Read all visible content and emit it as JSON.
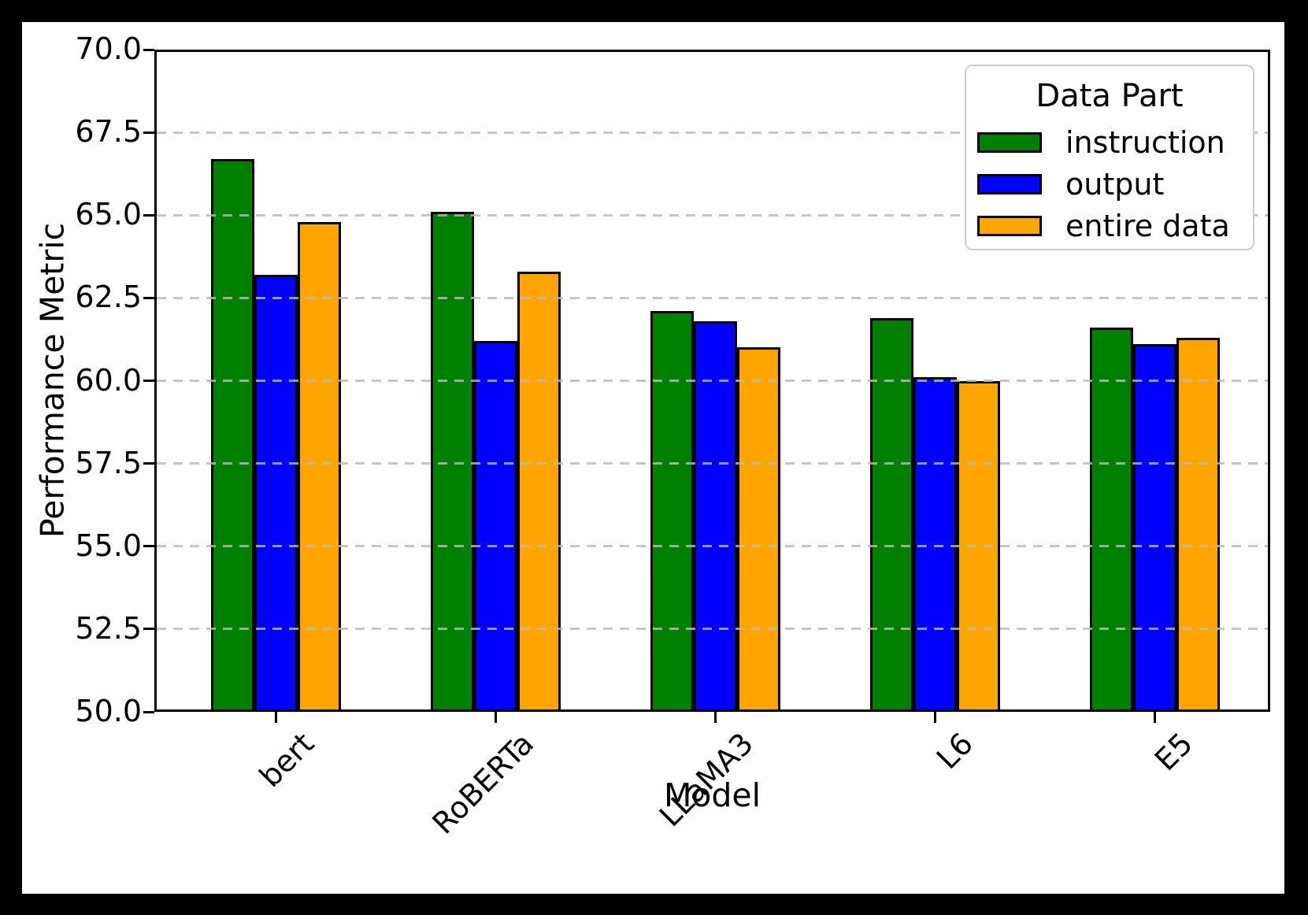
{
  "chart_data": {
    "type": "bar",
    "title": "",
    "xlabel": "Model",
    "ylabel": "Performance Metric",
    "legend_title": "Data Part",
    "legend_position": "upper right",
    "categories": [
      "bert",
      "RoBERTa",
      "LLaMA3",
      "L6",
      "E5"
    ],
    "series": [
      {
        "name": "instruction",
        "color": "#008000",
        "values": [
          66.7,
          65.1,
          62.1,
          61.9,
          61.6
        ]
      },
      {
        "name": "output",
        "color": "#0000ff",
        "values": [
          63.2,
          61.2,
          61.8,
          60.1,
          61.1
        ]
      },
      {
        "name": "entire data",
        "color": "#ffa500",
        "values": [
          64.8,
          63.3,
          61.0,
          60.0,
          61.3
        ]
      }
    ],
    "ylim": [
      50.0,
      70.0
    ],
    "ytick_step": 2.5,
    "ytick_labels": [
      "50.0",
      "52.5",
      "55.0",
      "57.5",
      "60.0",
      "62.5",
      "65.0",
      "67.5",
      "70.0"
    ],
    "grid": "horizontal dashed",
    "xtick_rotation": 45,
    "bar_edge_color": "#000000",
    "grid_color": "#bababa",
    "background_color": "#ffffff",
    "frame_color": "#000000",
    "legend_border_color": "#cccccc"
  }
}
